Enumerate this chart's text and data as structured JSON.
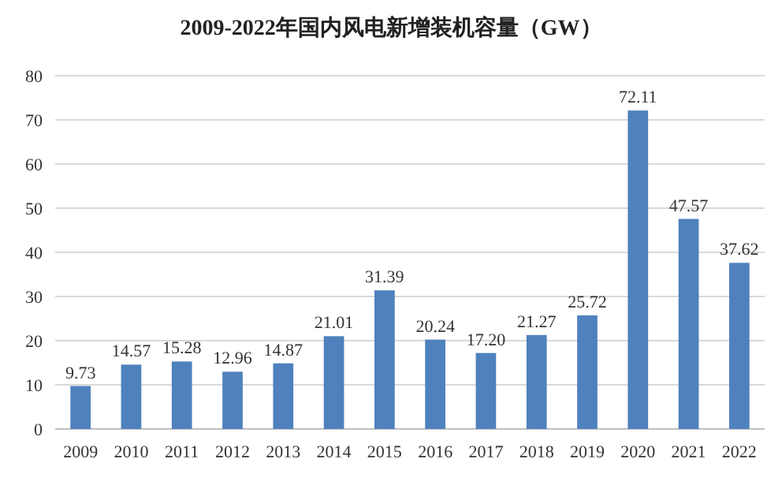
{
  "chart_data": {
    "type": "bar",
    "title": "2009-2022年国内风电新增装机容量（GW）",
    "categories": [
      "2009",
      "2010",
      "2011",
      "2012",
      "2013",
      "2014",
      "2015",
      "2016",
      "2017",
      "2018",
      "2019",
      "2020",
      "2021",
      "2022"
    ],
    "values": [
      9.73,
      14.57,
      15.28,
      12.96,
      14.87,
      21.01,
      31.39,
      20.24,
      17.2,
      21.27,
      25.72,
      72.11,
      47.57,
      37.62
    ],
    "value_labels": [
      "9.73",
      "14.57",
      "15.28",
      "12.96",
      "14.87",
      "21.01",
      "31.39",
      "20.24",
      "17.20",
      "21.27",
      "25.72",
      "72.11",
      "47.57",
      "37.62"
    ],
    "color": "#4f81bd",
    "ylim": [
      0,
      80
    ],
    "yticks": [
      0,
      10,
      20,
      30,
      40,
      50,
      60,
      70,
      80
    ],
    "grid": "y"
  }
}
